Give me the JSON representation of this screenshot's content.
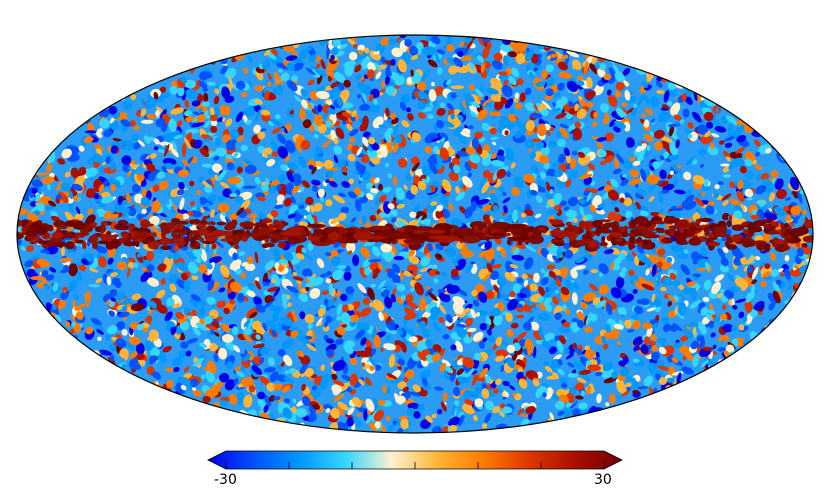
{
  "map": {
    "projection": "mollweide",
    "colormap": [
      "#0000e6",
      "#0052ff",
      "#0098ff",
      "#36d6ff",
      "#fff1cf",
      "#ffb436",
      "#ff7a00",
      "#dd3600",
      "#aa0e00",
      "#6e0000"
    ],
    "galactic_band_color": "#780800"
  },
  "colorbar": {
    "min_label": "-30",
    "max_label": "30",
    "min": -30,
    "max": 30,
    "extend": "both"
  }
}
